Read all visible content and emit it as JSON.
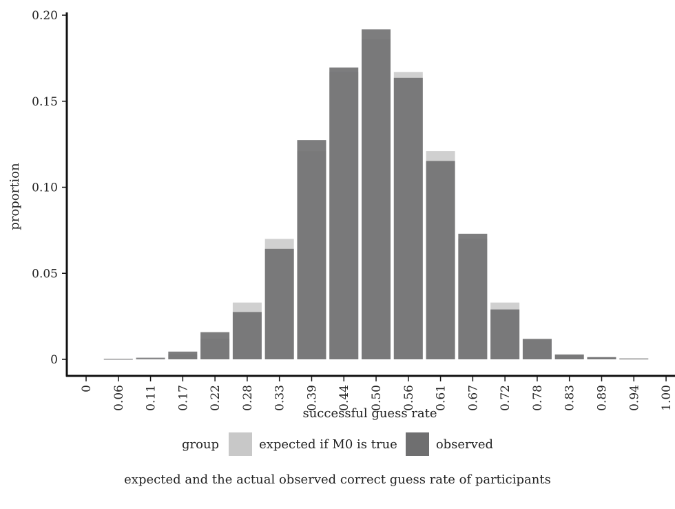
{
  "chart_data": {
    "type": "bar",
    "xlabel": "successful guess rate",
    "ylabel": "proportion",
    "ylim": [
      0,
      0.2
    ],
    "yticks": [
      "0",
      "0.05",
      "0.10",
      "0.15",
      "0.20"
    ],
    "ytick_values": [
      0,
      0.05,
      0.1,
      0.15,
      0.2
    ],
    "xticks": [
      "0",
      "0.06",
      "0.11",
      "0.17",
      "0.22",
      "0.28",
      "0.33",
      "0.39",
      "0.44",
      "0.50",
      "0.56",
      "0.61",
      "0.67",
      "0.72",
      "0.78",
      "0.83",
      "0.89",
      "0.94",
      "1.00"
    ],
    "categories": [
      "0",
      "0.06",
      "0.11",
      "0.17",
      "0.22",
      "0.28",
      "0.33",
      "0.39",
      "0.44",
      "0.50",
      "0.56",
      "0.61",
      "0.67",
      "0.72",
      "0.78",
      "0.83",
      "0.89",
      "0.94",
      "1.00"
    ],
    "series": [
      {
        "name": "expected if M0 is true",
        "color": "#c8c8c8",
        "values": [
          0.0,
          0.0003,
          0.0012,
          0.003,
          0.012,
          0.033,
          0.07,
          0.121,
          0.167,
          0.186,
          0.167,
          0.121,
          0.07,
          0.033,
          0.012,
          0.003,
          0.0008,
          0.0003,
          0.0
        ]
      },
      {
        "name": "observed",
        "color": "#6f6f70",
        "values": [
          0.0,
          0.0002,
          0.0007,
          0.0045,
          0.0158,
          0.0275,
          0.0642,
          0.1274,
          0.1696,
          0.1918,
          0.1636,
          0.1153,
          0.073,
          0.029,
          0.0118,
          0.0027,
          0.0013,
          0.0005,
          0.0
        ]
      }
    ],
    "legend_title": "group",
    "legend_position": "bottom",
    "grid": false
  },
  "caption": "expected and the actual observed correct guess rate of participants"
}
